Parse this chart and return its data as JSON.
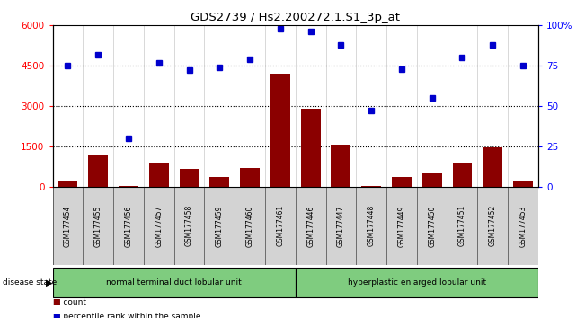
{
  "title": "GDS2739 / Hs2.200272.1.S1_3p_at",
  "samples": [
    "GSM177454",
    "GSM177455",
    "GSM177456",
    "GSM177457",
    "GSM177458",
    "GSM177459",
    "GSM177460",
    "GSM177461",
    "GSM177446",
    "GSM177447",
    "GSM177448",
    "GSM177449",
    "GSM177450",
    "GSM177451",
    "GSM177452",
    "GSM177453"
  ],
  "counts": [
    200,
    1200,
    30,
    900,
    650,
    350,
    700,
    4200,
    2900,
    1550,
    20,
    350,
    500,
    900,
    1450,
    200
  ],
  "percentiles": [
    75,
    82,
    30,
    77,
    72,
    74,
    79,
    98,
    96,
    88,
    47,
    73,
    55,
    80,
    88,
    75
  ],
  "group1_label": "normal terminal duct lobular unit",
  "group2_label": "hyperplastic enlarged lobular unit",
  "group1_count": 8,
  "group2_count": 8,
  "bar_color": "#8B0000",
  "dot_color": "#0000CC",
  "left_yticks": [
    0,
    1500,
    3000,
    4500,
    6000
  ],
  "right_yticks": [
    0,
    25,
    50,
    75,
    100
  ],
  "ylim_left": [
    0,
    6000
  ],
  "ylim_right": [
    0,
    100
  ],
  "sample_box_color": "#D3D3D3",
  "group_color": "#7FCC7F",
  "disease_state_label": "disease state",
  "legend_count_label": "count",
  "legend_pct_label": "percentile rank within the sample"
}
